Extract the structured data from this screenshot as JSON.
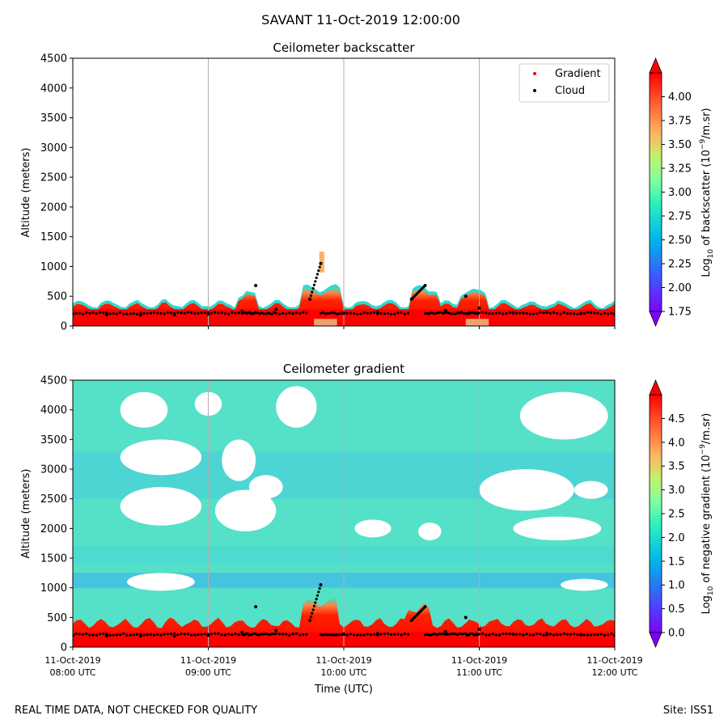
{
  "figure": {
    "suptitle": "SAVANT 11-Oct-2019 12:00:00",
    "footer_left": "REAL TIME DATA, NOT CHECKED FOR QUALITY",
    "footer_right": "Site: ISS1"
  },
  "chart_data": [
    {
      "type": "heatmap",
      "title": "Ceilometer backscatter",
      "ylabel": "Altitude (meters)",
      "xlabel": "",
      "ylim": [
        0,
        4500
      ],
      "yticks": [
        "0",
        "500",
        "1000",
        "1500",
        "2000",
        "2500",
        "3000",
        "3500",
        "4000",
        "4500"
      ],
      "xticks": [
        "11-Oct-2019\n08:00 UTC",
        "11-Oct-2019\n09:00 UTC",
        "11-Oct-2019\n10:00 UTC",
        "11-Oct-2019\n11:00 UTC",
        "11-Oct-2019\n12:00 UTC"
      ],
      "x_range_hours": [
        8,
        12
      ],
      "vertical_gridlines_hours": [
        9,
        10,
        11
      ],
      "colorbar": {
        "label": "Log10 of backscatter (10^-9/m.sr)",
        "range": [
          1.75,
          4.25
        ],
        "ticks": [
          "1.75",
          "2.00",
          "2.25",
          "2.50",
          "2.75",
          "3.00",
          "3.25",
          "3.50",
          "3.75",
          "4.00"
        ],
        "colormap": "rainbow"
      },
      "legend": {
        "placement": "top-right",
        "entries": [
          {
            "label": "Gradient",
            "color": "#ff0000"
          },
          {
            "label": "Cloud",
            "color": "#000000"
          }
        ]
      },
      "series": [
        {
          "name": "Cloud",
          "x_hours": [
            8.0,
            8.25,
            8.5,
            8.75,
            9.0,
            9.25,
            9.35,
            9.5,
            9.75,
            9.83,
            10.0,
            10.25,
            10.5,
            10.6,
            10.75,
            10.9,
            11.0,
            11.25,
            11.5,
            11.75,
            12.0
          ],
          "altitude_m": [
            200,
            190,
            185,
            190,
            200,
            250,
            680,
            280,
            450,
            1050,
            220,
            230,
            450,
            680,
            260,
            500,
            300,
            220,
            230,
            210,
            200
          ]
        }
      ],
      "notes": "Strong backscatter (red) layer from 0 to ~300 m throughout; scattered returns up to ~700 m; isolated feature near 1000-1200 m around 09:50 UTC."
    },
    {
      "type": "heatmap",
      "title": "Ceilometer gradient",
      "ylabel": "Altitude (meters)",
      "xlabel": "Time (UTC)",
      "ylim": [
        0,
        4500
      ],
      "yticks": [
        "0",
        "500",
        "1000",
        "1500",
        "2000",
        "2500",
        "3000",
        "3500",
        "4000",
        "4500"
      ],
      "xticks": [
        "11-Oct-2019\n08:00 UTC",
        "11-Oct-2019\n09:00 UTC",
        "11-Oct-2019\n10:00 UTC",
        "11-Oct-2019\n11:00 UTC",
        "11-Oct-2019\n12:00 UTC"
      ],
      "x_range_hours": [
        8,
        12
      ],
      "vertical_gridlines_hours": [
        9,
        10,
        11
      ],
      "colorbar": {
        "label": "Log10 of negative gradient (10^-9/m.sr)",
        "range": [
          0.0,
          5.0
        ],
        "ticks": [
          "0.0",
          "0.5",
          "1.0",
          "1.5",
          "2.0",
          "2.5",
          "3.0",
          "3.5",
          "4.0",
          "4.5"
        ],
        "colormap": "rainbow"
      },
      "series": [
        {
          "name": "Cloud",
          "x_hours": [
            8.0,
            8.25,
            8.5,
            8.75,
            9.0,
            9.25,
            9.35,
            9.5,
            9.75,
            9.83,
            10.0,
            10.25,
            10.5,
            10.6,
            10.75,
            10.9,
            11.0,
            11.25,
            11.5,
            11.75,
            12.0
          ],
          "altitude_m": [
            200,
            190,
            185,
            190,
            200,
            250,
            680,
            280,
            450,
            1050,
            220,
            230,
            450,
            680,
            260,
            500,
            300,
            220,
            230,
            210,
            200
          ]
        }
      ],
      "notes": "Cyan/green gradient field fills most of the column with white (no-data) gaps at 1700-4500 m; strong (red) gradient layer below ~400 m."
    }
  ]
}
